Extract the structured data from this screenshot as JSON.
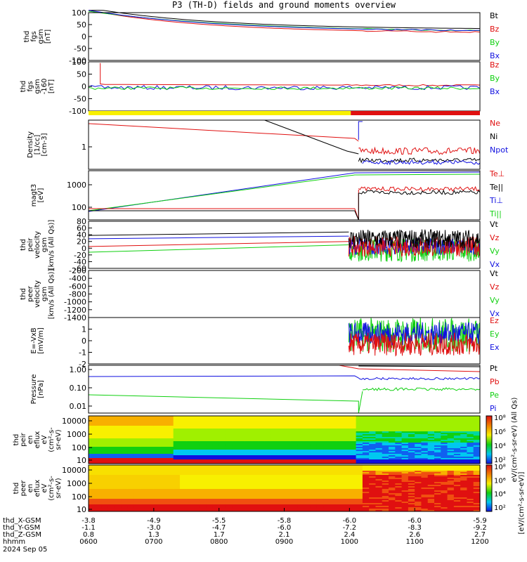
{
  "title": "P3 (TH-D) fields and ground moments overview",
  "colors": {
    "black": "#000000",
    "red": "#e01010",
    "green": "#10d010",
    "blue": "#1010e0",
    "yellow": "#f8f000"
  },
  "x_axis": {
    "rows": [
      {
        "label": "thd_X-GSM",
        "values": [
          "-3.8",
          "-4.9",
          "-5.5",
          "-5.8",
          "-6.0",
          "-6.0",
          "-5.9"
        ]
      },
      {
        "label": "thd_Y-GSM",
        "values": [
          "-1.1",
          "-3.0",
          "-4.7",
          "-6.0",
          "-7.2",
          "-8.3",
          "-9.2"
        ]
      },
      {
        "label": "thd_Z-GSM",
        "values": [
          "0.8",
          "1.3",
          "1.7",
          "2.1",
          "2.4",
          "2.6",
          "2.7"
        ]
      },
      {
        "label": "hhmm",
        "values": [
          "0600",
          "0700",
          "0800",
          "0900",
          "1000",
          "1100",
          "1200"
        ]
      }
    ],
    "date": "2024 Sep 05"
  },
  "colorbar": {
    "ticks": [
      "10⁸",
      "10⁶",
      "10⁴",
      "10²"
    ],
    "label_upper": "eV/(cm²-s-sr-eV) (All Qs)",
    "label_lower": "[eV/(cm²-s-sr-eV)]"
  },
  "chart_data": [
    {
      "type": "line",
      "ylabel": [
        "thd",
        "fgs",
        "gsm",
        "[nT]"
      ],
      "ylim": [
        -100,
        100
      ],
      "yticks": [
        "100",
        "50",
        "0",
        "-50",
        "-100"
      ],
      "legend": [
        {
          "name": "Bt",
          "color": "black"
        },
        {
          "name": "Bz",
          "color": "red"
        },
        {
          "name": "By",
          "color": "green"
        },
        {
          "name": "Bx",
          "color": "blue"
        }
      ]
    },
    {
      "type": "line",
      "ylabel": [
        "thd",
        "fgs",
        "gsm",
        "-160",
        "[nT]"
      ],
      "ylim": [
        -100,
        100
      ],
      "yticks": [
        "100",
        "50",
        "0",
        "-50",
        "-100"
      ],
      "legend": [
        {
          "name": "Bz",
          "color": "red"
        },
        {
          "name": "By",
          "color": "green"
        },
        {
          "name": "Bx",
          "color": "blue"
        }
      ]
    },
    {
      "type": "bar",
      "segments": [
        {
          "from": "0600",
          "to": "1000",
          "color": "yellow"
        },
        {
          "from": "1000",
          "to": "1200",
          "color": "red"
        }
      ]
    },
    {
      "type": "line",
      "ylabel": [
        "Density",
        "[1/cc]",
        "[cm-3]"
      ],
      "yticks": [
        "1"
      ],
      "legend": [
        {
          "name": "Ne",
          "color": "red"
        },
        {
          "name": "Ni",
          "color": "black"
        },
        {
          "name": "Npot",
          "color": "blue"
        }
      ]
    },
    {
      "type": "line",
      "ylabel": [
        "magt3",
        "[eV]"
      ],
      "yticks": [
        "1000",
        "100"
      ],
      "legend": [
        {
          "name": "Te⊥",
          "color": "red"
        },
        {
          "name": "Te||",
          "color": "black"
        },
        {
          "name": "Ti⊥",
          "color": "blue"
        },
        {
          "name": "Ti||",
          "color": "green"
        }
      ]
    },
    {
      "type": "line",
      "ylabel": [
        "thd",
        "peir",
        "velocity",
        "gsm",
        "[km/s (All Qs)]"
      ],
      "ylim": [
        -60,
        80
      ],
      "yticks": [
        "80",
        "60",
        "40",
        "20",
        "0",
        "-20",
        "-40",
        "-60"
      ],
      "legend": [
        {
          "name": "Vt",
          "color": "black"
        },
        {
          "name": "Vz",
          "color": "red"
        },
        {
          "name": "Vy",
          "color": "green"
        },
        {
          "name": "Vx",
          "color": "blue"
        }
      ]
    },
    {
      "type": "line",
      "ylabel": [
        "thd",
        "peer",
        "velocity",
        "gsm",
        "[km/s (All Qs)]"
      ],
      "ylim": [
        -1400,
        -200
      ],
      "yticks": [
        "-200",
        "-400",
        "-600",
        "-800",
        "-1000",
        "-1200",
        "-1400"
      ],
      "legend": [
        {
          "name": "Vt",
          "color": "black"
        },
        {
          "name": "Vz",
          "color": "red"
        },
        {
          "name": "Vy",
          "color": "green"
        },
        {
          "name": "Vx",
          "color": "blue"
        }
      ]
    },
    {
      "type": "line",
      "ylabel": [
        "E=-VxB",
        "[mV/m]"
      ],
      "ylim": [
        -2,
        2
      ],
      "yticks": [
        "1",
        "0",
        "-1",
        "-2"
      ],
      "legend": [
        {
          "name": "Ez",
          "color": "red"
        },
        {
          "name": "Ey",
          "color": "green"
        },
        {
          "name": "Ex",
          "color": "blue"
        }
      ]
    },
    {
      "type": "line",
      "ylabel": [
        "Pressure",
        "[nPa]"
      ],
      "yticks": [
        "1.00",
        "0.10",
        "0.01"
      ],
      "legend": [
        {
          "name": "Pt",
          "color": "black"
        },
        {
          "name": "Pb",
          "color": "red"
        },
        {
          "name": "Pe",
          "color": "green"
        },
        {
          "name": "Pi",
          "color": "blue"
        }
      ]
    },
    {
      "type": "heatmap",
      "ylabel": [
        "thd",
        "peir",
        "en",
        "eflux",
        "eV",
        "(cm²-s-",
        "sr-eV)"
      ],
      "yticks": [
        "10000",
        "1000",
        "100",
        "10"
      ]
    },
    {
      "type": "heatmap",
      "ylabel": [
        "thd",
        "peer",
        "en",
        "eflux",
        "eV",
        "(cm²-s-",
        "sr-eV)"
      ],
      "yticks": [
        "10000",
        "1000",
        "100",
        "10"
      ]
    }
  ]
}
